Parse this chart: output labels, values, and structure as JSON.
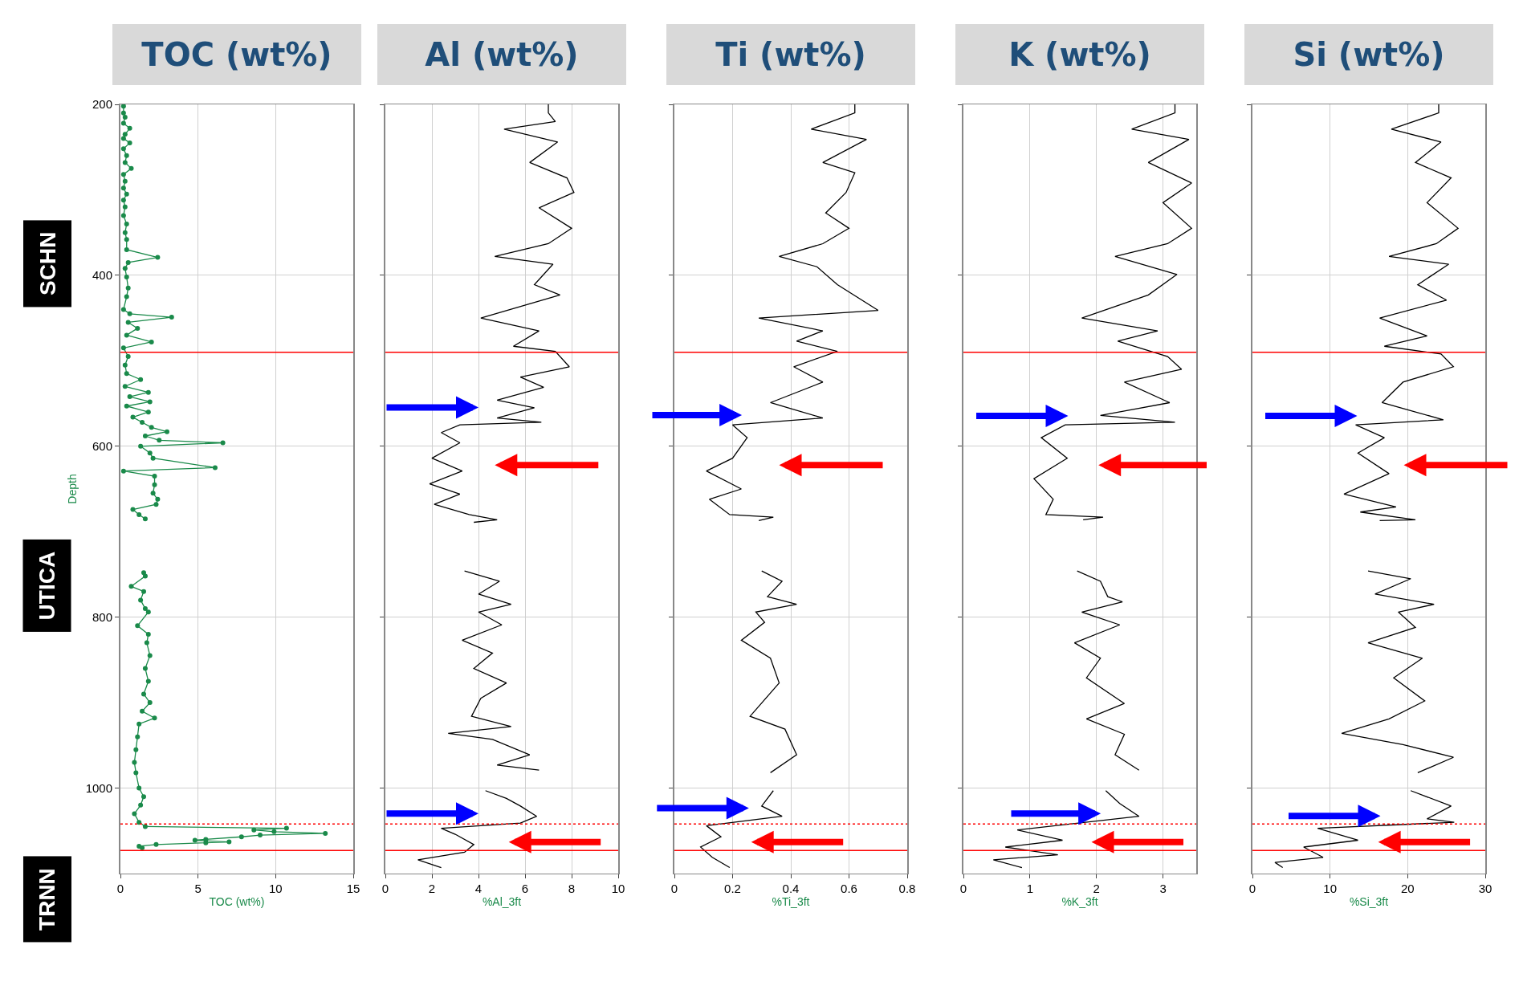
{
  "chart_data": [
    {
      "type": "line",
      "title": "TOC (wt%)",
      "xlabel": "TOC (wt%)",
      "ylabel": "Depth",
      "xlim": [
        0,
        15
      ],
      "xticks": [
        0,
        5,
        10,
        15
      ],
      "ylim": [
        1100,
        200
      ],
      "yticks": [
        200,
        400,
        600,
        800,
        1000
      ],
      "grid": true,
      "marker": "circle",
      "series": [
        {
          "color": "#1a8a4a",
          "x": [
            0.2,
            0.2,
            0.3,
            0.2,
            0.6,
            0.3,
            0.2,
            0.6,
            0.2,
            0.4,
            0.3,
            0.7,
            0.2,
            0.3,
            0.2,
            0.4,
            0.2,
            0.3,
            0.2,
            0.4,
            0.3,
            0.4,
            0.4,
            2.4,
            0.5,
            0.3,
            0.4,
            0.5,
            0.4,
            0.2,
            0.6,
            3.3,
            0.5,
            1.1,
            0.4,
            2.0,
            0.2,
            0.5,
            0.3,
            0.4,
            1.3,
            0.3,
            1.8,
            0.6,
            1.9,
            0.4,
            1.8,
            0.8,
            1.4,
            2.0,
            3.0,
            1.6,
            2.5,
            6.6,
            1.3,
            1.9,
            2.1,
            6.1,
            0.2,
            2.2,
            2.2,
            2.1,
            2.4,
            2.3,
            0.8,
            1.2,
            1.6,
            null,
            1.5,
            1.6,
            0.7,
            1.5,
            1.3,
            1.6,
            1.8,
            1.1,
            1.8,
            1.7,
            1.9,
            1.6,
            1.8,
            1.5,
            1.9,
            1.4,
            2.2,
            1.2,
            1.1,
            1.0,
            0.9,
            1.0,
            1.2,
            1.5,
            1.3,
            0.9,
            1.2,
            1.6,
            10.7,
            8.6,
            9.9,
            13.2,
            9.0,
            7.8,
            5.5,
            4.8,
            7.0,
            5.5,
            2.3,
            1.2,
            1.4
          ],
          "values": [
            202,
            210,
            215,
            222,
            228,
            235,
            240,
            245,
            252,
            260,
            268,
            275,
            282,
            290,
            298,
            305,
            312,
            320,
            330,
            340,
            350,
            358,
            370,
            379,
            385,
            392,
            402,
            415,
            425,
            440,
            445,
            449,
            455,
            462,
            470,
            478,
            485,
            495,
            505,
            515,
            522,
            530,
            537,
            542,
            548,
            553,
            560,
            566,
            572,
            578,
            583,
            588,
            593,
            596,
            600,
            608,
            614,
            625,
            629,
            635,
            645,
            655,
            662,
            668,
            674,
            680,
            685,
            null,
            748,
            752,
            764,
            770,
            780,
            790,
            794,
            810,
            820,
            830,
            845,
            860,
            875,
            890,
            900,
            910,
            918,
            925,
            940,
            955,
            970,
            982,
            1000,
            1010,
            1020,
            1030,
            1040,
            1045,
            1047,
            1049,
            1051,
            1053,
            1055,
            1057,
            1060,
            1061,
            1063,
            1064,
            1066,
            1068,
            1070
          ]
        }
      ],
      "ref_lines": [
        {
          "axis": "y",
          "value": 490,
          "color": "#ff0000",
          "line_style": "solid"
        },
        {
          "axis": "y",
          "value": 1042,
          "color": "#ff0000",
          "line_style": "dotted"
        },
        {
          "axis": "y",
          "value": 1073,
          "color": "#ff0000",
          "line_style": "solid"
        }
      ],
      "annotations": [
        "SCHN",
        "UTICA",
        "TRNN"
      ]
    },
    {
      "type": "line",
      "title": "Al (wt%)",
      "xlabel": "%Al_3ft",
      "xlim": [
        0,
        10
      ],
      "xticks": [
        0,
        2,
        4,
        6,
        8,
        10
      ],
      "ylim": [
        1100,
        200
      ],
      "yticks": [
        200,
        400,
        600,
        800,
        1000
      ],
      "grid": true,
      "tick_labels": "x",
      "series": [
        {
          "color": "#000000",
          "x": [
            7.0,
            7.0,
            7.3,
            5.1,
            7.4,
            6.2,
            7.8,
            8.1,
            6.6,
            8.0,
            7.0,
            4.7,
            7.2,
            6.4,
            7.5,
            4.1,
            6.6,
            5.5,
            7.3,
            7.9,
            5.8,
            6.8,
            4.8,
            6.4,
            4.8,
            6.7,
            3.2,
            2.4,
            3.2,
            2.0,
            3.3,
            1.9,
            3.2,
            2.1,
            3.6,
            4.8,
            3.8,
            null,
            3.4,
            4.9,
            4.0,
            5.4,
            4.0,
            5.0,
            3.3,
            4.6,
            3.8,
            5.2,
            4.1,
            3.7,
            5.4,
            2.7,
            4.6,
            6.2,
            4.8,
            6.6,
            null,
            4.3,
            5.2,
            5.8,
            6.5,
            5.8,
            2.4,
            3.0,
            3.8,
            3.4,
            1.4,
            2.4
          ],
          "values": [
            200,
            210,
            220,
            229,
            244,
            268,
            286,
            303,
            321,
            345,
            363,
            378,
            387,
            411,
            423,
            450,
            465,
            483,
            489,
            507,
            519,
            531,
            546,
            555,
            567,
            572,
            575,
            584,
            596,
            614,
            629,
            644,
            656,
            668,
            680,
            686,
            689,
            null,
            746,
            758,
            773,
            785,
            794,
            809,
            827,
            842,
            860,
            877,
            895,
            916,
            928,
            936,
            943,
            961,
            973,
            979,
            null,
            1003,
            1012,
            1021,
            1033,
            1041,
            1047,
            1054,
            1066,
            1075,
            1084,
            1093
          ]
        }
      ],
      "ref_lines": [
        {
          "axis": "y",
          "value": 490,
          "color": "#ff0000",
          "line_style": "solid"
        },
        {
          "axis": "y",
          "value": 1042,
          "color": "#ff0000",
          "line_style": "dotted"
        },
        {
          "axis": "y",
          "value": 1073,
          "color": "#ff0000",
          "line_style": "solid"
        }
      ]
    },
    {
      "type": "line",
      "title": "Ti (wt%)",
      "xlabel": "%Ti_3ft",
      "xlim": [
        0,
        0.8
      ],
      "xticks": [
        0,
        0.2,
        0.4,
        0.6,
        0.8
      ],
      "ylim": [
        1100,
        200
      ],
      "yticks": [
        200,
        400,
        600,
        800,
        1000
      ],
      "grid": true,
      "tick_labels": "x",
      "series": [
        {
          "color": "#000000",
          "x": [
            0.62,
            0.62,
            0.47,
            0.66,
            0.51,
            0.62,
            0.59,
            0.52,
            0.6,
            0.51,
            0.36,
            0.49,
            0.56,
            0.7,
            0.29,
            0.51,
            0.42,
            0.56,
            0.41,
            0.51,
            0.33,
            0.51,
            0.2,
            0.25,
            0.2,
            0.11,
            0.23,
            0.12,
            0.19,
            0.34,
            0.29,
            null,
            0.3,
            0.37,
            0.32,
            0.42,
            0.28,
            0.31,
            0.23,
            0.33,
            0.36,
            0.26,
            0.38,
            0.42,
            0.33,
            null,
            0.34,
            0.3,
            0.37,
            0.11,
            0.16,
            0.09,
            0.13,
            0.19
          ],
          "values": [
            200,
            210,
            229,
            241,
            268,
            280,
            303,
            327,
            345,
            363,
            378,
            390,
            411,
            441,
            450,
            465,
            477,
            489,
            507,
            525,
            549,
            567,
            575,
            590,
            614,
            629,
            650,
            662,
            680,
            683,
            687,
            null,
            746,
            758,
            776,
            785,
            794,
            806,
            827,
            848,
            877,
            916,
            931,
            961,
            982,
            null,
            1003,
            1021,
            1033,
            1044,
            1057,
            1069,
            1081,
            1093
          ]
        }
      ],
      "ref_lines": [
        {
          "axis": "y",
          "value": 490,
          "color": "#ff0000",
          "line_style": "solid"
        },
        {
          "axis": "y",
          "value": 1042,
          "color": "#ff0000",
          "line_style": "dotted"
        },
        {
          "axis": "y",
          "value": 1073,
          "color": "#ff0000",
          "line_style": "solid"
        }
      ]
    },
    {
      "type": "line",
      "title": "K (wt%)",
      "xlabel": "%K_3ft",
      "xlim": [
        0,
        3.5
      ],
      "xticks": [
        0,
        1,
        2,
        3
      ],
      "ylim": [
        1100,
        200
      ],
      "yticks": [
        200,
        400,
        600,
        800,
        1000
      ],
      "grid": true,
      "tick_labels": "x",
      "series": [
        {
          "color": "#000000",
          "x": [
            3.18,
            3.18,
            2.53,
            3.39,
            2.78,
            3.43,
            3.0,
            3.43,
            3.07,
            2.28,
            3.21,
            2.78,
            1.78,
            2.92,
            2.32,
            3.07,
            3.28,
            2.42,
            3.1,
            2.06,
            3.18,
            1.53,
            1.17,
            1.56,
            1.06,
            1.35,
            1.24,
            2.1,
            1.8,
            null,
            1.71,
            2.06,
            2.17,
            2.39,
            1.78,
            2.35,
            1.67,
            2.06,
            1.85,
            2.42,
            1.85,
            2.42,
            2.28,
            2.64,
            null,
            2.14,
            2.35,
            2.64,
            0.81,
            1.49,
            0.63,
            1.42,
            0.45,
            0.88
          ],
          "values": [
            200,
            210,
            229,
            241,
            268,
            292,
            315,
            345,
            363,
            378,
            399,
            423,
            450,
            465,
            477,
            495,
            510,
            525,
            549,
            564,
            572,
            575,
            590,
            614,
            638,
            662,
            680,
            683,
            686,
            null,
            746,
            758,
            776,
            782,
            794,
            809,
            830,
            848,
            871,
            901,
            919,
            937,
            961,
            979,
            null,
            1003,
            1018,
            1033,
            1049,
            1061,
            1069,
            1078,
            1084,
            1093
          ]
        }
      ],
      "ref_lines": [
        {
          "axis": "y",
          "value": 490,
          "color": "#ff0000",
          "line_style": "solid"
        },
        {
          "axis": "y",
          "value": 1042,
          "color": "#ff0000",
          "line_style": "dotted"
        },
        {
          "axis": "y",
          "value": 1073,
          "color": "#ff0000",
          "line_style": "solid"
        }
      ]
    },
    {
      "type": "line",
      "title": "Si (wt%)",
      "xlabel": "%Si_3ft",
      "xlim": [
        0,
        30
      ],
      "xticks": [
        0,
        10,
        20,
        30
      ],
      "ylim": [
        1100,
        200
      ],
      "yticks": [
        200,
        400,
        600,
        800,
        1000
      ],
      "grid": true,
      "tick_labels": "x",
      "series": [
        {
          "color": "#000000",
          "x": [
            24.0,
            24.0,
            17.9,
            24.3,
            21.0,
            25.6,
            22.5,
            26.5,
            23.7,
            17.6,
            25.3,
            21.3,
            25.0,
            16.4,
            22.5,
            17.0,
            24.3,
            25.9,
            19.4,
            16.7,
            24.6,
            13.3,
            17.0,
            13.6,
            17.6,
            11.8,
            18.5,
            13.9,
            21.0,
            16.4,
            null,
            14.9,
            20.4,
            15.8,
            23.4,
            18.8,
            21.0,
            14.9,
            21.9,
            18.2,
            22.2,
            17.6,
            11.5,
            19.4,
            25.9,
            21.3,
            null,
            20.4,
            25.6,
            22.5,
            26.0,
            8.4,
            13.6,
            6.6,
            9.1,
            2.9,
            3.9
          ],
          "values": [
            200,
            210,
            229,
            244,
            268,
            286,
            315,
            345,
            363,
            378,
            387,
            411,
            429,
            450,
            471,
            483,
            492,
            507,
            525,
            549,
            569,
            575,
            590,
            608,
            632,
            656,
            671,
            677,
            686,
            687,
            null,
            746,
            755,
            773,
            785,
            794,
            812,
            830,
            848,
            871,
            898,
            919,
            936,
            949,
            964,
            982,
            null,
            1003,
            1021,
            1036,
            1040,
            1047,
            1061,
            1069,
            1081,
            1087,
            1093
          ]
        }
      ],
      "ref_lines": [
        {
          "axis": "y",
          "value": 490,
          "color": "#ff0000",
          "line_style": "solid"
        },
        {
          "axis": "y",
          "value": 1042,
          "color": "#ff0000",
          "line_style": "dotted"
        },
        {
          "axis": "y",
          "value": 1073,
          "color": "#ff0000",
          "line_style": "solid"
        }
      ]
    }
  ]
}
